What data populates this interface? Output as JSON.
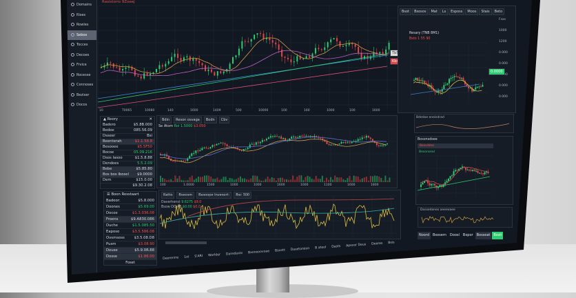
{
  "colors": {
    "up": "#2ecc71",
    "down": "#e0464a",
    "panel": "#151c26",
    "accent_green": "#2ecc71"
  },
  "sidebar": {
    "items": [
      {
        "label": "Domains",
        "icon": "gear-icon"
      },
      {
        "label": "Rises",
        "icon": "circle-icon"
      },
      {
        "label": "Rowles",
        "icon": "circle-icon"
      },
      {
        "label": "Sebox",
        "icon": "circle-icon",
        "active": true
      },
      {
        "label": "Tocces",
        "icon": "doc-icon"
      },
      {
        "label": "Decoes",
        "icon": "circle-icon"
      },
      {
        "label": "Frvice",
        "icon": "circle-icon"
      },
      {
        "label": "Rocesse",
        "icon": "circle-icon"
      },
      {
        "label": "Connoses",
        "icon": "circle-icon"
      },
      {
        "label": "Bezixer",
        "icon": "circle-icon"
      },
      {
        "label": "Docos",
        "icon": "circle-icon"
      }
    ]
  },
  "main_chart": {
    "title": "Rasistorio 9Zoeej",
    "xticks": [
      "10",
      "T0065",
      "10080",
      "140",
      "1600",
      "1409",
      "500",
      "10000",
      "100",
      "160",
      "1000",
      "100",
      "1600"
    ],
    "price_tags": [
      "Tb500",
      "Kbs"
    ]
  },
  "watchlist1": {
    "title": "Reory",
    "rows": [
      {
        "name": "Badero",
        "value": "$5.8B.000",
        "tone": ""
      },
      {
        "name": "Bedoe",
        "value": "085.56.09",
        "tone": ""
      },
      {
        "name": "Dsseer",
        "value": "Bsi",
        "tone": ""
      },
      {
        "name": "Beenterah",
        "value": "$1.1.58.8",
        "tone": "r"
      },
      {
        "name": "Besooee",
        "value": "$5.5F50",
        "tone": "r"
      },
      {
        "name": "Bocoe",
        "value": "05.09.216",
        "tone": "g"
      },
      {
        "name": "Dsos Iasoo",
        "value": "$1.5.8.88",
        "tone": ""
      },
      {
        "name": "Dendoes",
        "value": "5.5.2.09",
        "tone": "g"
      },
      {
        "name": "Bebe",
        "value": "$5.85.80",
        "tone": ""
      },
      {
        "name": "Bos bos Ibosel",
        "value": "$9.0000",
        "tone": ""
      },
      {
        "name": "Dem",
        "value": "$15.0.00",
        "tone": ""
      },
      {
        "name": "",
        "value": "$9.30.2.08",
        "tone": ""
      }
    ]
  },
  "watchlist2": {
    "title": "Boon Resstaart",
    "footer": "Foset",
    "rows": [
      {
        "name": "Badeor:",
        "value": "$5.8.000",
        "tone": ""
      },
      {
        "name": "Doones",
        "value": "$5.69.00",
        "tone": "g"
      },
      {
        "name": "Docoe",
        "value": "$1.3.036.08",
        "tone": "r"
      },
      {
        "name": "Froens",
        "value": "$9.A830.086",
        "tone": ""
      },
      {
        "name": "Duche",
        "value": "$1.5.085.50",
        "tone": "g"
      },
      {
        "name": "Eaposo",
        "value": "$3.5.586.08",
        "tone": "r"
      },
      {
        "name": "Ovsmsoss",
        "value": "$3.5.08.D8",
        "tone": ""
      },
      {
        "name": "Pusm",
        "value": "$3.08.90",
        "tone": "r"
      },
      {
        "name": "Deuse",
        "value": "$5.9.0R.88",
        "tone": ""
      },
      {
        "name": "Dosse",
        "value": "$1.86.00",
        "tone": "r"
      }
    ]
  },
  "mid_chart": {
    "tabs": [
      "Bdin",
      "Reson osvaga",
      "Bodn",
      "Cbv"
    ],
    "legend": "Se Atom",
    "legend_v1": "Roi 1.5000",
    "legend_v2": "$3.050",
    "xticks": [
      "100",
      "1.0000",
      "1500",
      "1000",
      "1000",
      "1600",
      "1000",
      "1100",
      "1600",
      "1800"
    ]
  },
  "oscillator": {
    "tabs": [
      "Ratto",
      "Bseosm",
      "Basoope Invesort:",
      "Bsc 300"
    ],
    "line1": "Daverhenst",
    "line1_v": "9.6275",
    "line1_r": "$9.0",
    "line2": "Bsow OO.A8",
    "line2_v": "$0.00",
    "line2_r": "$0.0"
  },
  "bottom_bar": {
    "items": [
      "Deerenrre",
      "1st",
      "S'ARI",
      "Worlder",
      "Dansdaxie",
      "Bxoneoovoae",
      "Bsoott",
      "Dasetorsion",
      "B ateol",
      "Dasts",
      "Apsoor Deus",
      "Deeres",
      "Bsis"
    ]
  },
  "right_panel": {
    "tabs": [
      "Bsot",
      "Bsosos",
      "Mat",
      "Ls",
      "Esposs",
      "Moos",
      "Stais",
      "Beto"
    ],
    "title": "Resary (TNB 8M1)",
    "subtitle": "Bsto 1 55 90",
    "yticks": [
      "Fsas",
      "1000",
      "1200",
      "0.000",
      "0.000",
      "0.000",
      "0.000",
      "0.000"
    ],
    "price_tag": "0.0000",
    "mini_title": "Bdedoe eneisdrad",
    "lower_title": "Bosonsdsee",
    "lower_legend": "Besonseal",
    "lower_tab": "Bsovdmo",
    "osc_title": "Dossedanes aeeeoaee"
  },
  "action_buttons": {
    "items": [
      "Noord",
      "Bsosern",
      "Doosl",
      "Bxpor",
      "Bosseat"
    ],
    "primary": "Bssit"
  }
}
